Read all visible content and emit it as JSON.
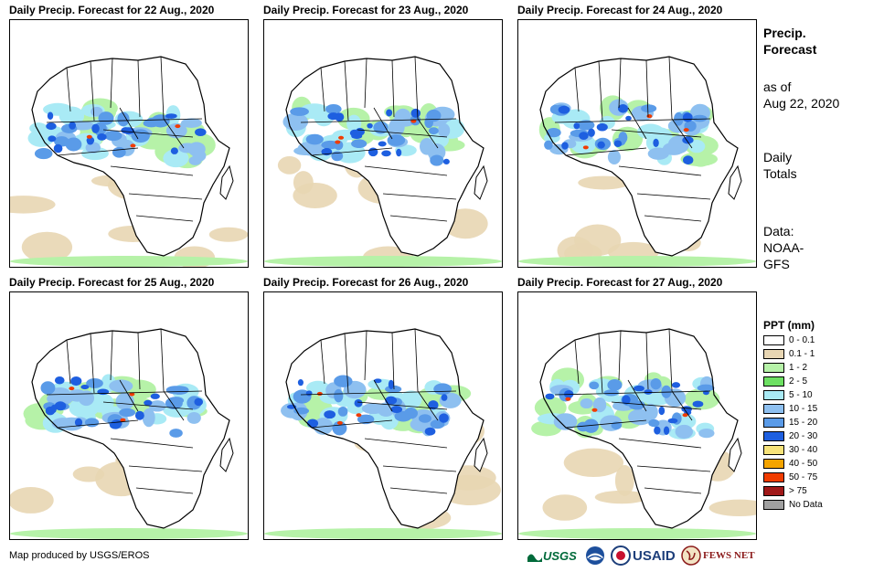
{
  "panels": [
    {
      "title": "Daily Precip. Forecast for 22 Aug., 2020"
    },
    {
      "title": "Daily Precip. Forecast for 23 Aug., 2020"
    },
    {
      "title": "Daily Precip. Forecast for 24 Aug., 2020"
    },
    {
      "title": "Daily Precip. Forecast for 25 Aug., 2020"
    },
    {
      "title": "Daily Precip. Forecast for 26 Aug., 2020"
    },
    {
      "title": "Daily Precip. Forecast for 27 Aug., 2020"
    }
  ],
  "side_info": {
    "title_line1": "Precip.",
    "title_line2": "Forecast",
    "asof_line1": "as of",
    "asof_line2": "Aug 22, 2020",
    "totals_line1": "Daily",
    "totals_line2": "Totals",
    "data_line1": "Data:",
    "data_line2": "NOAA-",
    "data_line3": "GFS"
  },
  "legend": {
    "title": "PPT (mm)",
    "items": [
      {
        "label": "0 - 0.1",
        "color": "#ffffff"
      },
      {
        "label": "0.1 - 1",
        "color": "#e8d6b3"
      },
      {
        "label": "1 - 2",
        "color": "#b6f2a8"
      },
      {
        "label": "2 - 5",
        "color": "#6de062"
      },
      {
        "label": "5 - 10",
        "color": "#a9eaf5"
      },
      {
        "label": "10 - 15",
        "color": "#8ec0f0"
      },
      {
        "label": "15 - 20",
        "color": "#5a9be8"
      },
      {
        "label": "20 - 30",
        "color": "#1e5fe0"
      },
      {
        "label": "30 - 40",
        "color": "#f7e37a"
      },
      {
        "label": "40 - 50",
        "color": "#f5a400"
      },
      {
        "label": "50 - 75",
        "color": "#f03c00"
      },
      {
        "label": "> 75",
        "color": "#a01818"
      },
      {
        "label": "No Data",
        "color": "#a0a0a0"
      }
    ]
  },
  "credit": "Map produced by USGS/EROS",
  "logos": {
    "usgs": "USGS",
    "usaid": "USAID",
    "fewsnet": "FEWS NET"
  }
}
